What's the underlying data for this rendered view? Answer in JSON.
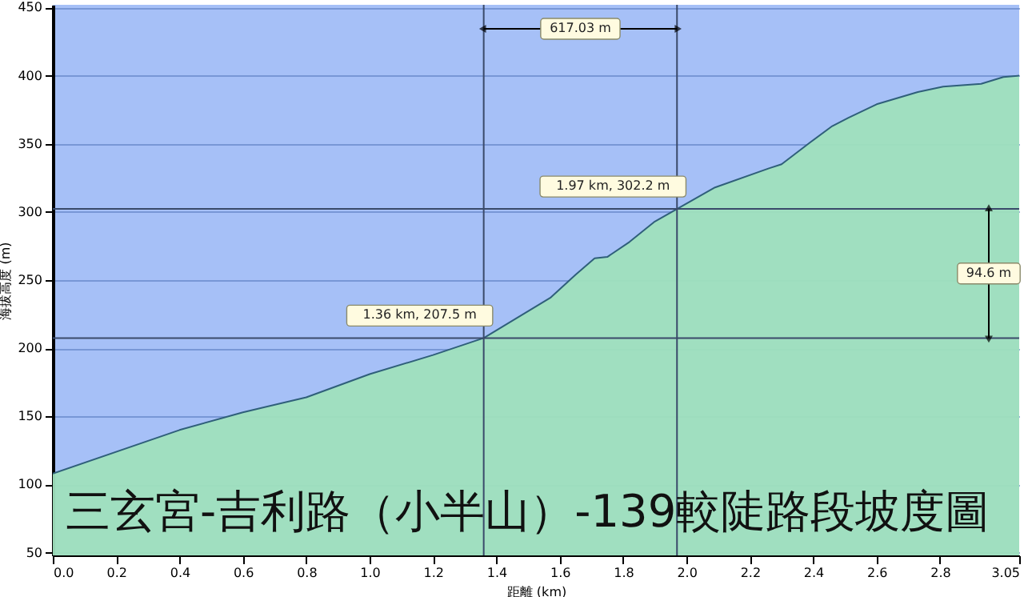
{
  "chart_data": {
    "type": "area",
    "title": "三玄宮-吉利路（小半山）-139較陡路段坡度圖",
    "xlabel": "距離 (km)",
    "ylabel": "海拔高度 (m)",
    "series": [
      {
        "color": "#2f5f7a",
        "x": [
          0,
          0.4,
          0.6,
          0.8,
          1.0,
          1.2,
          1.36,
          1.57,
          1.65,
          1.71,
          1.75,
          1.82,
          1.9,
          1.97,
          2.09,
          2.26,
          2.3,
          2.39,
          2.46,
          2.51,
          2.6,
          2.73,
          2.81,
          2.93,
          3.0,
          3.05
        ],
        "values": [
          108,
          140,
          153,
          164,
          181,
          195,
          207.5,
          237,
          254,
          266,
          267,
          278,
          293,
          302.2,
          318,
          332,
          335,
          351,
          363,
          369,
          379,
          388,
          392,
          394,
          399,
          400
        ]
      }
    ],
    "xlim": [
      0,
      3.05
    ],
    "ylim": [
      48,
      452
    ],
    "xticks": [
      {
        "value": 0,
        "label": "0.0"
      },
      0.2,
      0.4,
      0.6,
      0.8,
      {
        "value": 1,
        "label": "1.0"
      },
      1.2,
      1.4,
      1.6,
      1.8,
      {
        "value": 2,
        "label": "2.0"
      },
      2.2,
      2.4,
      2.6,
      2.8,
      3.05
    ],
    "yticks": [
      50,
      100,
      150,
      200,
      250,
      300,
      350,
      400,
      450
    ],
    "grid": "y",
    "ref_lines": [
      {
        "axis": "x",
        "value": 1.36
      },
      {
        "axis": "x",
        "value": 1.97
      },
      {
        "axis": "y",
        "value": 207.5
      },
      {
        "axis": "y",
        "value": 302.2
      }
    ],
    "annotations": [
      "617.03 m",
      "94.6 m",
      {
        "text": "1.36 km, 207.5 m",
        "x": 1.36,
        "y": 207.5
      },
      {
        "text": "1.97 km, 302.2 m",
        "x": 1.97,
        "y": 302.2
      }
    ]
  }
}
